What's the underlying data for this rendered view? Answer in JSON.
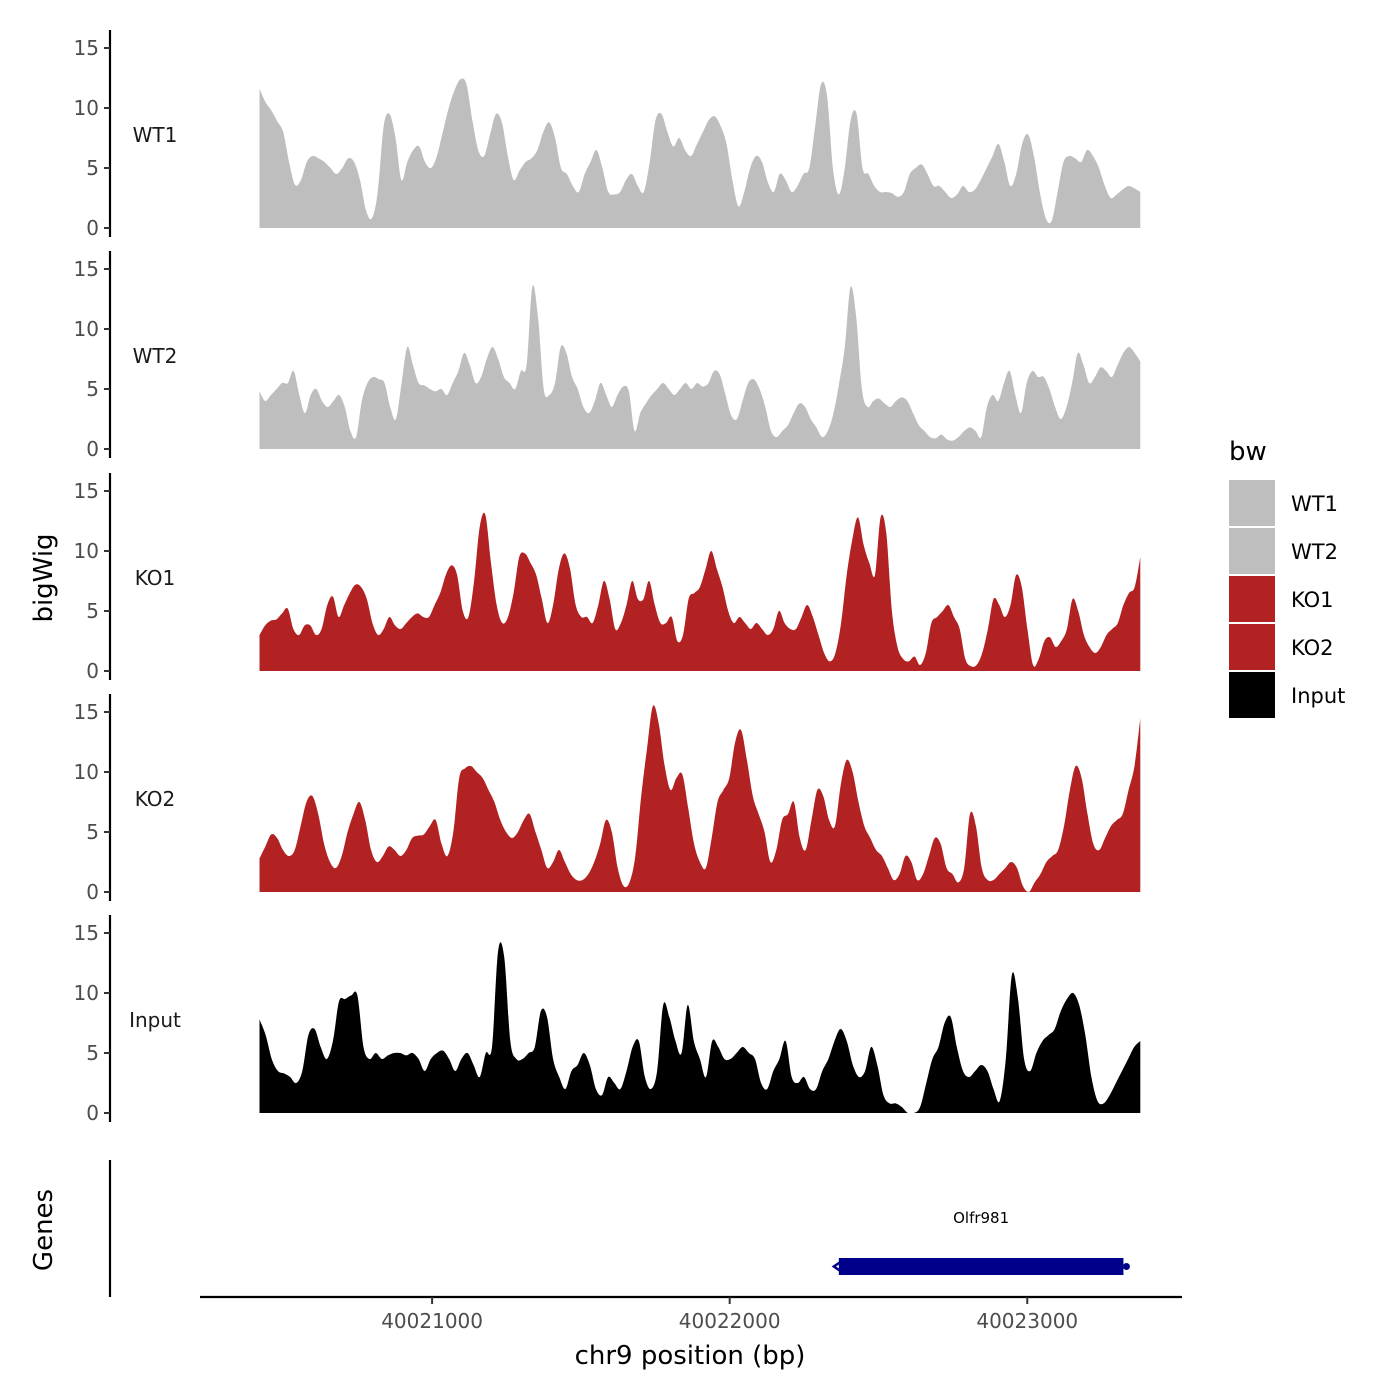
{
  "chart_data": {
    "type": "area",
    "ylabel": "bigWig",
    "xlabel": "chr9 position (bp)",
    "genes_label": "Genes",
    "ylim": [
      0,
      15.5
    ],
    "yticks": [
      0,
      5,
      10,
      15
    ],
    "xlim": [
      40020220,
      40023520
    ],
    "xticks": [
      40021000,
      40022000,
      40023000
    ],
    "x_start": 40020420,
    "x_end": 40023380,
    "legend": {
      "title": "bw",
      "items": [
        {
          "label": "WT1",
          "color": "#bebebe"
        },
        {
          "label": "WT2",
          "color": "#bebebe"
        },
        {
          "label": "KO1",
          "color": "#b22222"
        },
        {
          "label": "KO2",
          "color": "#b22222"
        },
        {
          "label": "Input",
          "color": "#000000"
        }
      ]
    },
    "tracks": [
      {
        "name": "WT1",
        "color": "#bebebe",
        "values": [
          11.6,
          10.5,
          9.8,
          8.9,
          8.0,
          5.5,
          3.6,
          4.0,
          5.5,
          6.0,
          5.8,
          5.5,
          5.0,
          4.5,
          5.0,
          5.8,
          5.5,
          4.0,
          1.5,
          0.8,
          3.0,
          8.5,
          9.5,
          7.5,
          4.0,
          5.5,
          6.5,
          6.8,
          5.5,
          5.0,
          6.0,
          8.0,
          10.0,
          11.5,
          12.4,
          12.0,
          9.0,
          6.5,
          6.0,
          7.8,
          9.5,
          8.8,
          6.0,
          4.0,
          4.8,
          5.5,
          5.8,
          6.5,
          8.0,
          8.8,
          7.5,
          5.0,
          4.5,
          3.5,
          3.0,
          4.5,
          5.5,
          6.5,
          5.0,
          3.0,
          2.8,
          3.0,
          4.0,
          4.5,
          3.5,
          3.0,
          5.5,
          9.0,
          9.5,
          8.0,
          6.8,
          7.5,
          6.5,
          6.0,
          7.0,
          8.0,
          9.0,
          9.3,
          8.5,
          7.0,
          4.0,
          1.8,
          3.0,
          5.0,
          6.0,
          5.5,
          3.8,
          3.0,
          4.5,
          4.0,
          3.0,
          3.5,
          4.5,
          5.0,
          8.5,
          12.0,
          11.0,
          5.0,
          2.8,
          5.0,
          9.0,
          9.5,
          5.0,
          4.5,
          3.5,
          3.0,
          3.0,
          2.9,
          2.6,
          3.0,
          4.5,
          5.0,
          5.3,
          4.5,
          3.5,
          3.5,
          3.0,
          2.5,
          2.8,
          3.5,
          3.0,
          3.2,
          4.0,
          5.0,
          6.0,
          7.0,
          5.5,
          3.5,
          4.5,
          7.0,
          7.8,
          6.0,
          3.0,
          0.8,
          0.6,
          3.0,
          5.5,
          6.0,
          5.8,
          5.5,
          6.5,
          6.0,
          5.0,
          3.5,
          2.5,
          2.8,
          3.2,
          3.5,
          3.3,
          3.0
        ]
      },
      {
        "name": "WT2",
        "color": "#bebebe",
        "values": [
          4.8,
          4.0,
          4.5,
          5.0,
          5.5,
          5.5,
          6.5,
          4.5,
          3.0,
          4.5,
          5.0,
          4.0,
          3.5,
          4.0,
          4.5,
          3.5,
          1.5,
          1.0,
          4.0,
          5.5,
          6.0,
          5.8,
          5.5,
          3.5,
          2.5,
          5.5,
          8.5,
          7.0,
          5.5,
          5.3,
          5.0,
          4.8,
          5.0,
          4.5,
          5.5,
          6.5,
          8.0,
          7.0,
          5.5,
          6.0,
          7.5,
          8.5,
          7.5,
          6.0,
          5.5,
          5.0,
          6.5,
          7.0,
          13.5,
          11.0,
          5.0,
          4.5,
          5.5,
          8.5,
          8.0,
          6.0,
          5.0,
          3.5,
          3.0,
          4.0,
          5.5,
          4.5,
          3.5,
          4.5,
          5.2,
          4.8,
          1.5,
          3.0,
          3.8,
          4.5,
          5.0,
          5.5,
          5.0,
          4.5,
          5.0,
          5.5,
          5.0,
          5.5,
          5.2,
          5.5,
          6.5,
          6.2,
          4.5,
          2.8,
          2.5,
          4.0,
          5.5,
          5.8,
          5.0,
          3.5,
          1.5,
          1.0,
          1.5,
          2.0,
          3.0,
          3.8,
          3.5,
          2.5,
          1.8,
          1.0,
          1.5,
          3.0,
          5.5,
          8.5,
          13.5,
          11.0,
          5.0,
          3.5,
          4.0,
          4.2,
          3.8,
          3.5,
          4.0,
          4.3,
          4.0,
          3.0,
          2.0,
          1.5,
          1.0,
          0.9,
          1.2,
          0.8,
          0.7,
          1.0,
          1.5,
          1.8,
          1.5,
          1.0,
          3.5,
          4.5,
          4.0,
          5.5,
          6.5,
          4.5,
          3.0,
          5.5,
          6.5,
          6.0,
          6.0,
          5.0,
          3.5,
          2.5,
          3.5,
          5.5,
          8.0,
          7.0,
          5.5,
          6.0,
          6.8,
          6.5,
          6.0,
          7.0,
          8.0,
          8.5,
          8.0,
          7.3
        ]
      },
      {
        "name": "KO1",
        "color": "#b22222",
        "values": [
          3.0,
          3.8,
          4.2,
          4.3,
          4.8,
          5.2,
          3.5,
          3.0,
          3.8,
          3.8,
          3.0,
          3.5,
          5.5,
          6.2,
          4.5,
          5.5,
          6.5,
          7.2,
          7.0,
          6.0,
          4.0,
          3.0,
          3.5,
          4.5,
          3.8,
          3.5,
          4.0,
          4.5,
          4.8,
          4.5,
          4.5,
          5.5,
          6.5,
          8.0,
          8.8,
          8.0,
          5.0,
          4.5,
          7.5,
          12.0,
          13.0,
          9.0,
          5.5,
          4.0,
          4.5,
          6.5,
          9.5,
          9.8,
          9.0,
          8.0,
          6.0,
          4.0,
          5.5,
          8.5,
          9.8,
          8.5,
          5.5,
          4.5,
          4.5,
          4.0,
          5.5,
          7.5,
          6.0,
          3.5,
          4.0,
          5.5,
          7.5,
          6.0,
          6.0,
          7.5,
          5.5,
          4.0,
          4.0,
          4.5,
          2.5,
          3.0,
          6.0,
          6.5,
          7.0,
          8.5,
          10.0,
          8.5,
          7.0,
          5.0,
          4.0,
          4.5,
          4.0,
          3.5,
          4.0,
          3.5,
          3.0,
          3.5,
          5.0,
          4.0,
          3.5,
          3.5,
          4.5,
          5.5,
          4.5,
          3.0,
          1.5,
          0.8,
          1.5,
          4.0,
          8.0,
          11.0,
          12.8,
          10.5,
          9.0,
          8.0,
          12.8,
          11.5,
          5.0,
          2.0,
          1.0,
          0.8,
          1.2,
          0.5,
          1.5,
          4.0,
          4.5,
          5.0,
          5.5,
          4.5,
          3.5,
          1.0,
          0.4,
          0.5,
          1.5,
          3.5,
          6.0,
          5.5,
          4.5,
          5.5,
          8.0,
          7.0,
          3.5,
          0.5,
          1.0,
          2.5,
          2.8,
          2.0,
          2.5,
          3.5,
          6.0,
          5.0,
          3.0,
          2.0,
          1.5,
          2.0,
          3.0,
          3.5,
          4.0,
          5.5,
          6.5,
          7.0,
          9.5
        ]
      },
      {
        "name": "KO2",
        "color": "#b22222",
        "values": [
          2.8,
          3.8,
          4.8,
          4.5,
          3.5,
          3.0,
          3.5,
          5.5,
          7.5,
          8.0,
          6.5,
          4.0,
          2.5,
          2.0,
          3.0,
          5.0,
          6.5,
          7.5,
          6.0,
          3.5,
          2.5,
          3.0,
          3.8,
          3.5,
          3.0,
          3.5,
          4.5,
          4.7,
          4.8,
          5.5,
          6.0,
          4.0,
          3.0,
          5.0,
          9.5,
          10.3,
          10.5,
          10.0,
          9.5,
          8.5,
          7.5,
          6.0,
          5.0,
          4.5,
          5.0,
          6.0,
          6.5,
          5.0,
          3.5,
          2.0,
          2.5,
          3.5,
          2.5,
          1.5,
          1.0,
          1.0,
          1.5,
          2.5,
          4.0,
          6.0,
          5.0,
          2.0,
          0.5,
          0.8,
          3.0,
          8.0,
          12.0,
          15.5,
          14.0,
          10.5,
          8.5,
          9.5,
          9.8,
          7.0,
          4.0,
          2.5,
          2.0,
          4.5,
          7.5,
          8.5,
          9.5,
          12.5,
          13.5,
          11.0,
          8.0,
          6.5,
          5.0,
          2.5,
          3.5,
          6.0,
          6.5,
          7.5,
          4.5,
          3.5,
          6.0,
          8.5,
          8.0,
          6.0,
          5.5,
          9.0,
          11.0,
          10.0,
          7.5,
          5.5,
          4.5,
          3.5,
          3.0,
          2.0,
          1.0,
          1.5,
          3.0,
          2.5,
          1.0,
          1.5,
          3.0,
          4.5,
          4.0,
          2.0,
          1.5,
          0.8,
          2.0,
          6.5,
          5.5,
          2.0,
          1.0,
          1.0,
          1.5,
          2.0,
          2.5,
          2.0,
          0.5,
          0.0,
          0.8,
          1.5,
          2.5,
          3.0,
          3.5,
          5.5,
          8.5,
          10.5,
          9.5,
          6.5,
          4.0,
          3.5,
          4.5,
          5.5,
          6.0,
          6.5,
          8.5,
          10.5,
          14.5
        ]
      },
      {
        "name": "Input",
        "color": "#000000",
        "values": [
          7.8,
          6.5,
          4.5,
          3.5,
          3.3,
          3.0,
          2.5,
          3.5,
          6.5,
          7.0,
          5.5,
          4.5,
          6.0,
          9.3,
          9.5,
          9.8,
          9.8,
          5.5,
          4.5,
          5.0,
          4.5,
          4.8,
          5.0,
          5.0,
          4.8,
          5.0,
          4.5,
          3.5,
          4.5,
          5.0,
          5.2,
          4.5,
          3.5,
          4.5,
          5.0,
          4.0,
          3.0,
          5.0,
          5.5,
          13.5,
          13.0,
          6.0,
          4.5,
          4.5,
          5.0,
          5.5,
          8.5,
          8.0,
          4.5,
          3.0,
          2.0,
          3.5,
          4.0,
          5.0,
          4.0,
          2.0,
          1.5,
          3.0,
          2.5,
          2.0,
          3.5,
          5.5,
          6.0,
          3.0,
          2.0,
          3.5,
          9.0,
          8.0,
          6.0,
          5.0,
          9.0,
          6.0,
          4.5,
          3.0,
          6.0,
          5.5,
          4.5,
          4.5,
          5.0,
          5.5,
          5.0,
          4.5,
          2.5,
          2.0,
          3.5,
          4.5,
          6.0,
          3.0,
          2.5,
          3.0,
          2.0,
          2.0,
          3.5,
          4.5,
          6.0,
          7.0,
          6.0,
          4.0,
          3.0,
          3.5,
          5.5,
          4.0,
          1.5,
          0.8,
          0.8,
          0.5,
          0.0,
          0.0,
          0.5,
          2.5,
          4.5,
          5.5,
          7.5,
          8.0,
          5.5,
          3.5,
          3.0,
          3.5,
          4.0,
          3.5,
          2.0,
          1.0,
          4.5,
          11.5,
          9.5,
          4.5,
          3.5,
          5.0,
          6.0,
          6.5,
          7.0,
          8.5,
          9.5,
          10.0,
          9.0,
          6.5,
          3.0,
          1.0,
          0.8,
          1.5,
          2.5,
          3.5,
          4.5,
          5.5,
          6.0
        ]
      }
    ],
    "genes": [
      {
        "name": "Olfr981",
        "start": 40022350,
        "end": 40023340,
        "strand": "-",
        "color": "#00008b"
      }
    ]
  }
}
